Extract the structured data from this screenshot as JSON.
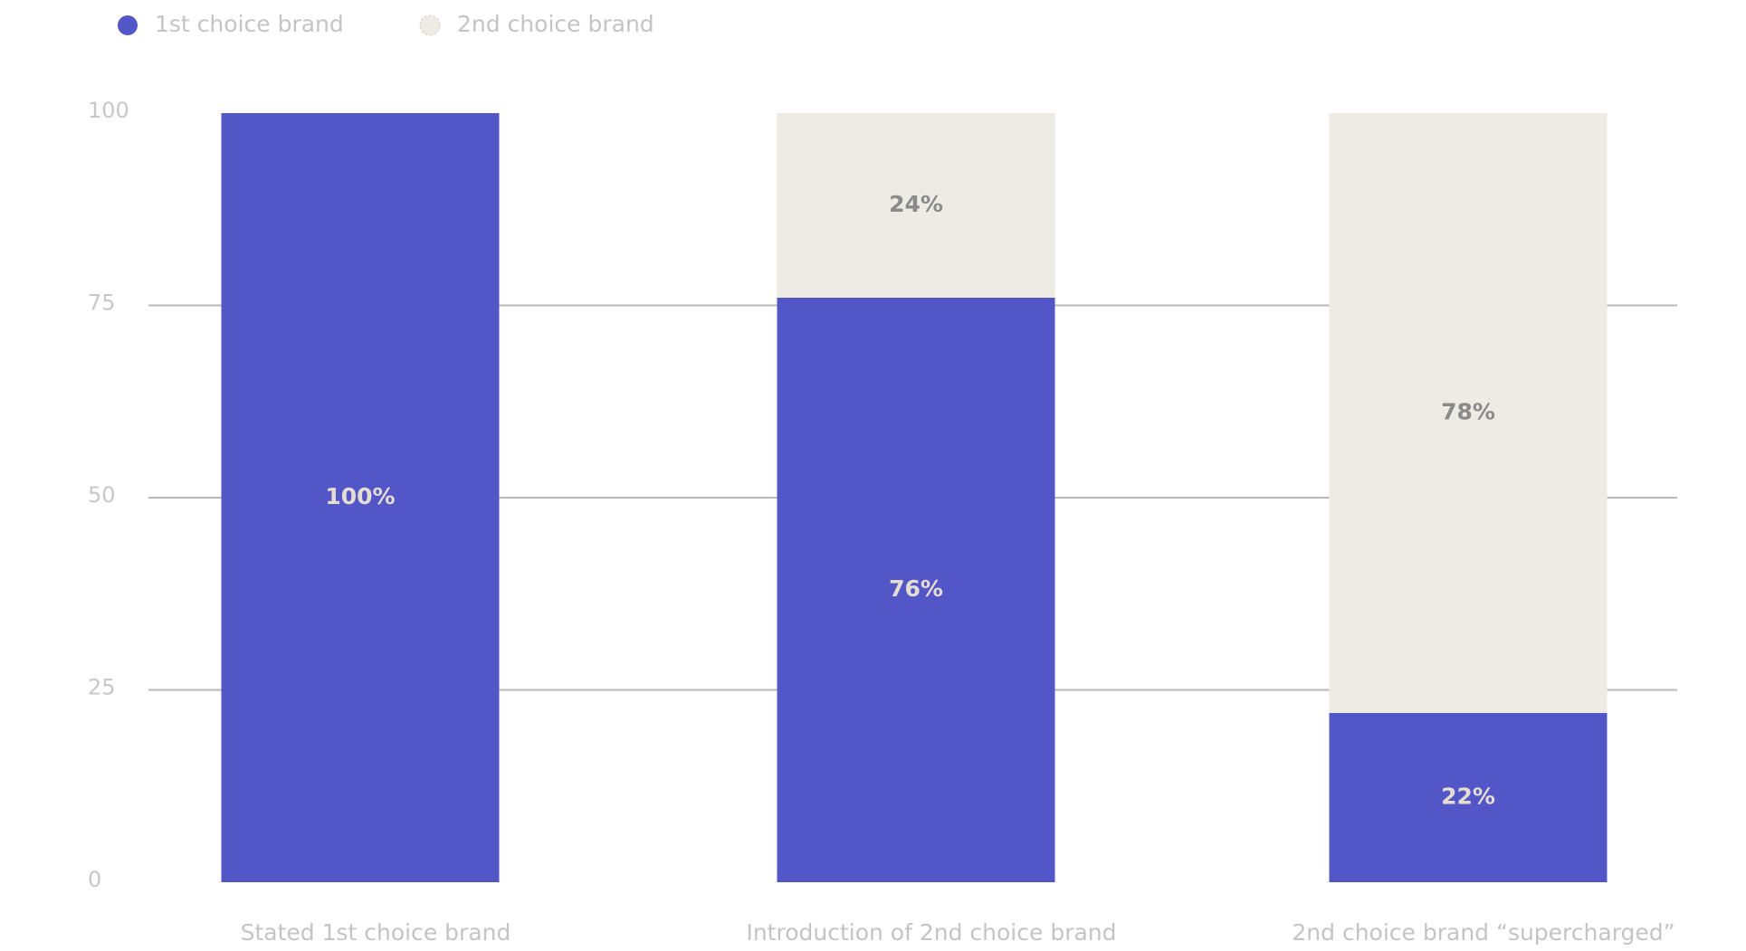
{
  "chart_data": {
    "type": "stacked_bar",
    "categories": [
      "Stated 1st choice brand",
      "Introduction of 2nd choice brand",
      "2nd choice brand “supercharged”"
    ],
    "series": [
      {
        "name": "1st choice brand",
        "color": "#5356c6",
        "values": [
          100,
          76,
          22
        ],
        "value_labels": [
          "100%",
          "76%",
          "22%"
        ]
      },
      {
        "name": "2nd choice brand",
        "color": "#eeebe5",
        "values": [
          0,
          24,
          78
        ],
        "value_labels": [
          null,
          "24%",
          "78%"
        ]
      }
    ],
    "ylim": [
      0,
      100
    ],
    "yticks": [
      0,
      25,
      50,
      75,
      100
    ],
    "grid": true,
    "legend": "top-left"
  }
}
